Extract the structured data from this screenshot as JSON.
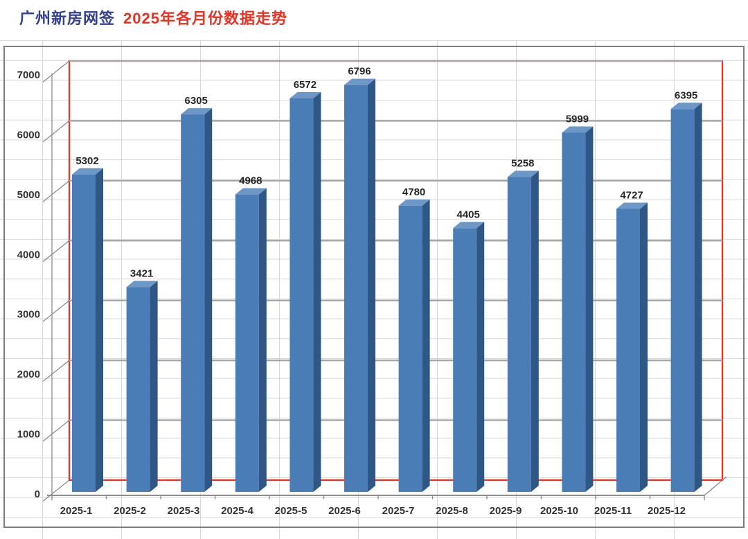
{
  "title": {
    "part1": "广州新房网签",
    "part2": "2025年各月份数据走势",
    "part1_color": "#333F8F",
    "part2_color": "#E93223"
  },
  "chart_data": {
    "type": "bar",
    "style": "3d-column",
    "title": "广州新房网签 2025年各月份数据走势",
    "categories": [
      "2025-1",
      "2025-2",
      "2025-3",
      "2025-4",
      "2025-5",
      "2025-6",
      "2025-7",
      "2025-8",
      "2025-9",
      "2025-10",
      "2025-11",
      "2025-12"
    ],
    "values": [
      5302,
      3421,
      6305,
      4968,
      6572,
      6796,
      4780,
      4405,
      5258,
      5999,
      4727,
      6395
    ],
    "xlabel": "",
    "ylabel": "",
    "ylim": [
      0,
      7000
    ],
    "ytick_interval": 1000,
    "yticks": [
      0,
      1000,
      2000,
      3000,
      4000,
      5000,
      6000,
      7000
    ],
    "grid": true,
    "legend": "none",
    "data_labels": true,
    "colors": {
      "bar_front": "#4A7CB5",
      "bar_side": "#2E5786",
      "bar_top": "#6D97C6",
      "wall_border": "#F82C1E",
      "major_gridline": "#A6A6A6",
      "axis_line": "#8C8C8C",
      "label_text": "#262626",
      "sheet_gridline": "#D8D8D8"
    }
  }
}
